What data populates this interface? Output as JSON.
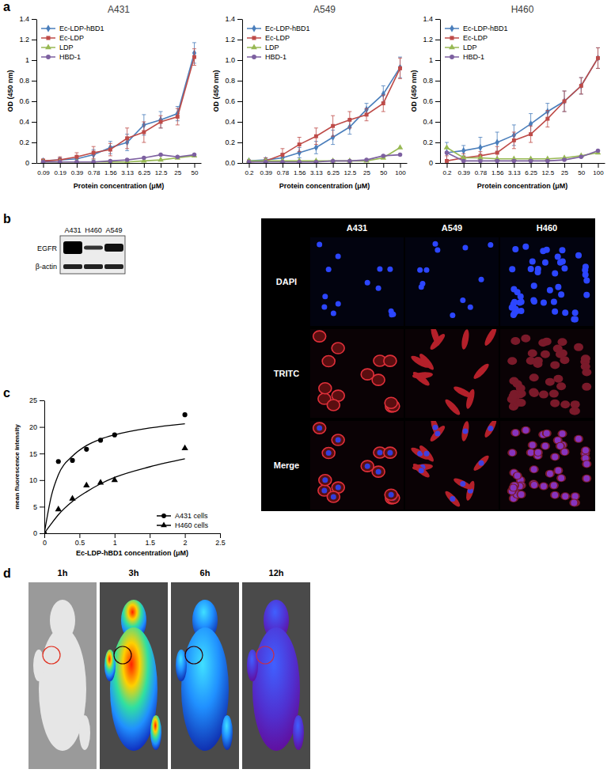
{
  "panel_labels": [
    "a",
    "b",
    "c",
    "d"
  ],
  "chart_data": [
    {
      "type": "line",
      "title": "A431",
      "x_label": "Protein concentration (μM)",
      "y_label": "OD (450 nm)",
      "categories": [
        "0.09",
        "0.19",
        "0.39",
        "0.78",
        "1.56",
        "3.13",
        "6.25",
        "12.5",
        "25",
        "50"
      ],
      "ylim": [
        0,
        1.4
      ],
      "yticks": [
        0,
        0.2,
        0.4,
        0.6,
        0.8,
        1,
        1.2,
        1.4
      ],
      "legend": "upper left",
      "series": [
        {
          "name": "Ec-LDP-hBD1",
          "color": "#4a7ebb",
          "marker": "diamond",
          "values": [
            0.02,
            0.03,
            0.04,
            0.08,
            0.15,
            0.2,
            0.37,
            0.42,
            0.48,
            1.07
          ],
          "errors": [
            0.01,
            0.02,
            0.03,
            0.05,
            0.06,
            0.08,
            0.1,
            0.08,
            0.07,
            0.1
          ]
        },
        {
          "name": "Ec-LDP",
          "color": "#be4b48",
          "marker": "square",
          "values": [
            0.02,
            0.03,
            0.06,
            0.1,
            0.13,
            0.24,
            0.3,
            0.4,
            0.45,
            1.03
          ],
          "errors": [
            0.02,
            0.03,
            0.04,
            0.06,
            0.06,
            0.1,
            0.1,
            0.06,
            0.08,
            0.08
          ]
        },
        {
          "name": "LDP",
          "color": "#98b954",
          "marker": "triangle",
          "values": [
            0.01,
            0.01,
            0.01,
            0.01,
            0.01,
            0.01,
            0.02,
            0.03,
            0.05,
            0.07
          ]
        },
        {
          "name": "HBD-1",
          "color": "#7d60a0",
          "marker": "circle",
          "values": [
            0.01,
            0.01,
            0.01,
            0.01,
            0.02,
            0.03,
            0.05,
            0.08,
            0.06,
            0.08
          ]
        }
      ]
    },
    {
      "type": "line",
      "title": "A549",
      "x_label": "Protein concentration (μM)",
      "y_label": "OD (450 nm)",
      "categories": [
        "0.2",
        "0.39",
        "0.78",
        "1.56",
        "3.13",
        "6.25",
        "12.5",
        "25",
        "50",
        "100"
      ],
      "ylim": [
        0,
        1.4
      ],
      "yticks": [
        {
          "value": 0,
          "label": "0.0"
        },
        0.2,
        0.4,
        0.6,
        0.8,
        {
          "value": 1,
          "label": "1.0"
        },
        1.2,
        1.4
      ],
      "legend": "upper left",
      "series": [
        {
          "name": "Ec-LDP-hBD1",
          "color": "#4a7ebb",
          "marker": "diamond",
          "values": [
            0.02,
            0.03,
            0.05,
            0.1,
            0.15,
            0.25,
            0.35,
            0.52,
            0.67,
            0.93
          ],
          "errors": [
            0.01,
            0.02,
            0.04,
            0.05,
            0.06,
            0.07,
            0.07,
            0.06,
            0.08,
            0.1
          ]
        },
        {
          "name": "Ec-LDP",
          "color": "#be4b48",
          "marker": "square",
          "values": [
            0.01,
            0.02,
            0.08,
            0.18,
            0.26,
            0.36,
            0.42,
            0.47,
            0.58,
            0.92
          ],
          "errors": [
            0.02,
            0.03,
            0.06,
            0.07,
            0.08,
            0.1,
            0.08,
            0.06,
            0.08,
            0.1
          ]
        },
        {
          "name": "LDP",
          "color": "#98b954",
          "marker": "triangle",
          "values": [
            0.02,
            0.02,
            0.02,
            0.02,
            0.02,
            0.02,
            0.02,
            0.02,
            0.05,
            0.15
          ]
        },
        {
          "name": "HBD-1",
          "color": "#7d60a0",
          "marker": "circle",
          "values": [
            0.01,
            0.01,
            0.01,
            0.01,
            0.01,
            0.02,
            0.02,
            0.03,
            0.07,
            0.08
          ]
        }
      ]
    },
    {
      "type": "line",
      "title": "H460",
      "x_label": "Protein concentration (μM)",
      "y_label": "OD (450 nm)",
      "categories": [
        "0.2",
        "0.39",
        "0.78",
        "1.56",
        "3.13",
        "6.25",
        "12.5",
        "25",
        "50",
        "100"
      ],
      "ylim": [
        0,
        1.4
      ],
      "yticks": [
        0,
        0.2,
        0.4,
        0.6,
        0.8,
        1,
        1.2,
        1.4
      ],
      "legend": "upper left",
      "series": [
        {
          "name": "Ec-LDP-hBD1",
          "color": "#4a7ebb",
          "marker": "diamond",
          "values": [
            0.1,
            0.12,
            0.15,
            0.2,
            0.27,
            0.38,
            0.5,
            0.6,
            0.75,
            1.02
          ],
          "errors": [
            0.1,
            0.05,
            0.1,
            0.1,
            0.1,
            0.1,
            0.08,
            0.1,
            0.08,
            0.1
          ]
        },
        {
          "name": "Ec-LDP",
          "color": "#be4b48",
          "marker": "square",
          "values": [
            0.02,
            0.05,
            0.07,
            0.1,
            0.22,
            0.28,
            0.43,
            0.6,
            0.75,
            1.02
          ],
          "errors": [
            0.05,
            0.04,
            0.04,
            0.06,
            0.08,
            0.08,
            0.08,
            0.1,
            0.08,
            0.1
          ]
        },
        {
          "name": "LDP",
          "color": "#98b954",
          "marker": "triangle",
          "values": [
            0.15,
            0.05,
            0.05,
            0.04,
            0.04,
            0.04,
            0.04,
            0.05,
            0.07,
            0.1
          ]
        },
        {
          "name": "HBD-1",
          "color": "#7d60a0",
          "marker": "circle",
          "values": [
            0.1,
            0.02,
            0.02,
            0.02,
            0.02,
            0.02,
            0.02,
            0.03,
            0.06,
            0.12
          ]
        }
      ]
    },
    {
      "type": "scatter",
      "x_label": "Ec-LDP-hBD1 concentration (μM)",
      "y_label": "mean fluorescence intensity",
      "xlim": [
        0,
        2.5
      ],
      "xticks": [
        0,
        0.5,
        1,
        1.5,
        2,
        2.5
      ],
      "ylim": [
        0,
        25
      ],
      "yticks": [
        0,
        5,
        10,
        15,
        20,
        25
      ],
      "legend": "lower right",
      "series": [
        {
          "name": "A431 cells",
          "color": "#000000",
          "marker": "circle",
          "x": [
            0,
            0.2,
            0.4,
            0.6,
            0.8,
            1,
            2
          ],
          "values": [
            0,
            13.5,
            13.7,
            15.8,
            17.5,
            18.5,
            22.3
          ],
          "fit": {
            "x": [
              0,
              0.1,
              0.2,
              0.4,
              0.6,
              0.8,
              1,
              1.5,
              2
            ],
            "values": [
              0,
              7,
              11,
              14.5,
              16.5,
              17.7,
              18.5,
              19.8,
              20.6
            ]
          }
        },
        {
          "name": "H460 cells",
          "color": "#000000",
          "marker": "triangle",
          "x": [
            0,
            0.2,
            0.4,
            0.6,
            0.8,
            1,
            2
          ],
          "values": [
            0,
            4.5,
            6.5,
            9,
            9.5,
            10,
            16
          ],
          "fit": {
            "x": [
              0,
              0.1,
              0.2,
              0.4,
              0.6,
              0.8,
              1,
              1.5,
              2
            ],
            "values": [
              0,
              1.8,
              3.5,
              6,
              7.8,
              9.3,
              10.5,
              12.5,
              14
            ]
          }
        }
      ]
    }
  ],
  "blot": {
    "lanes": [
      "A431",
      "H460",
      "A549"
    ],
    "bands": [
      "EGFR",
      "β-actin"
    ]
  },
  "microscopy": {
    "columns": [
      "A431",
      "A549",
      "H460"
    ],
    "rows": [
      "DAPI",
      "TRITC",
      "Merge"
    ]
  },
  "imaging": {
    "timepoints": [
      "1h",
      "3h",
      "6h",
      "12h"
    ]
  }
}
